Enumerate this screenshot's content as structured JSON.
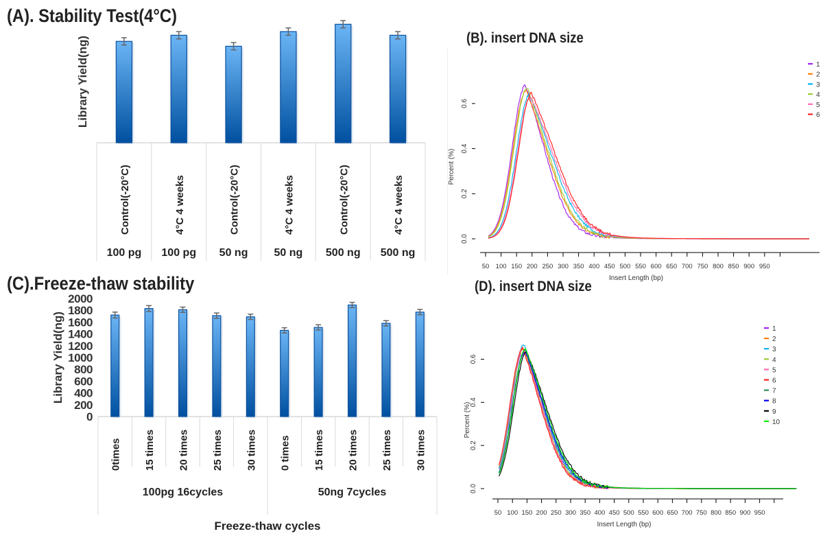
{
  "chart_data": [
    {
      "id": "A",
      "type": "bar",
      "title": "(A). Stability Test(4°C)",
      "xlabel": "",
      "ylabel": "Library Yield(ng)",
      "y_ticks_shown": false,
      "ylim": [
        0,
        100
      ],
      "value_units": "relative (no y tick labels shown)",
      "categories": [
        "Control(-20°C)",
        "4°C 4 weeks",
        "Control(-20°C)",
        "4°C 4 weeks",
        "Control(-20°C)",
        "4°C 4 weeks"
      ],
      "groups": [
        "100 pg",
        "100 pg",
        "50 ng",
        "50 ng",
        "500 ng",
        "500 ng"
      ],
      "values": [
        83,
        88,
        79,
        91,
        97,
        88
      ],
      "errors": [
        3,
        3,
        3,
        3,
        3,
        3
      ],
      "bar_color_top": "#6bb5f5",
      "bar_color_bottom": "#0050a0"
    },
    {
      "id": "B",
      "type": "line",
      "title": "(B). insert DNA size",
      "xlabel": "Insert Length (bp)",
      "ylabel": "Percent (%)",
      "xlim": [
        50,
        1000
      ],
      "ylim": [
        0,
        0.7
      ],
      "x_ticks": [
        50,
        100,
        150,
        200,
        250,
        300,
        350,
        400,
        450,
        500,
        550,
        600,
        650,
        700,
        750,
        800,
        850,
        900,
        950
      ],
      "y_ticks": [
        "0.0",
        "0.2",
        "0.4",
        "0.6"
      ],
      "legend_position": "top-right",
      "series": [
        {
          "name": "1",
          "color": "#a020f0",
          "peak_x": 160,
          "peak_y": 0.68,
          "right_decay": 70
        },
        {
          "name": "2",
          "color": "#ff7f00",
          "peak_x": 162,
          "peak_y": 0.66,
          "right_decay": 76
        },
        {
          "name": "3",
          "color": "#00b2ee",
          "peak_x": 172,
          "peak_y": 0.64,
          "right_decay": 80
        },
        {
          "name": "4",
          "color": "#9acd32",
          "peak_x": 165,
          "peak_y": 0.67,
          "right_decay": 76
        },
        {
          "name": "5",
          "color": "#ff69b4",
          "peak_x": 175,
          "peak_y": 0.63,
          "right_decay": 84
        },
        {
          "name": "6",
          "color": "#ff2020",
          "peak_x": 178,
          "peak_y": 0.645,
          "right_decay": 86
        }
      ]
    },
    {
      "id": "C",
      "type": "bar",
      "title": "(C).Freeze-thaw stability",
      "xlabel": "Freeze-thaw cycles",
      "ylabel": "Library Yield(ng)",
      "ylim": [
        0,
        2000
      ],
      "y_ticks": [
        0,
        200,
        400,
        600,
        800,
        1000,
        1200,
        1400,
        1600,
        1800,
        2000
      ],
      "categories": [
        "0times",
        "15 times",
        "20 times",
        "25 times",
        "30 times",
        "0 times",
        "15 times",
        "20 times",
        "25 times",
        "30 times"
      ],
      "groups": [
        {
          "label": "100pg 16cycles",
          "span": 5
        },
        {
          "label": "50ng 7cycles",
          "span": 5
        }
      ],
      "values": [
        1720,
        1830,
        1810,
        1710,
        1690,
        1460,
        1510,
        1890,
        1580,
        1770
      ],
      "errors": [
        50,
        50,
        45,
        45,
        45,
        45,
        45,
        45,
        45,
        45
      ],
      "bar_color_top": "#6bb5f5",
      "bar_color_bottom": "#0050a0"
    },
    {
      "id": "D",
      "type": "line",
      "title": "(D). insert DNA size",
      "xlabel": "Insert Length (bp)",
      "ylabel": "Percent (%)",
      "xlim": [
        50,
        1000
      ],
      "ylim": [
        0,
        0.7
      ],
      "x_ticks": [
        50,
        100,
        150,
        200,
        250,
        300,
        350,
        400,
        450,
        500,
        550,
        600,
        650,
        700,
        750,
        800,
        850,
        900,
        950
      ],
      "y_ticks": [
        "0.0",
        "0.2",
        "0.4",
        "0.6"
      ],
      "legend_position": "top-right",
      "series": [
        {
          "name": "1",
          "color": "#a020f0",
          "peak_x": 160,
          "peak_y": 0.65,
          "right_decay": 72
        },
        {
          "name": "2",
          "color": "#ff7f00",
          "peak_x": 158,
          "peak_y": 0.65,
          "right_decay": 70
        },
        {
          "name": "3",
          "color": "#00b2ee",
          "peak_x": 160,
          "peak_y": 0.67,
          "right_decay": 72
        },
        {
          "name": "4",
          "color": "#9acd32",
          "peak_x": 158,
          "peak_y": 0.65,
          "right_decay": 71
        },
        {
          "name": "5",
          "color": "#ff69b4",
          "peak_x": 157,
          "peak_y": 0.65,
          "right_decay": 70
        },
        {
          "name": "6",
          "color": "#ff2020",
          "peak_x": 156,
          "peak_y": 0.65,
          "right_decay": 69
        },
        {
          "name": "7",
          "color": "#2e8b57",
          "peak_x": 163,
          "peak_y": 0.64,
          "right_decay": 74
        },
        {
          "name": "8",
          "color": "#0000ee",
          "peak_x": 164,
          "peak_y": 0.635,
          "right_decay": 74
        },
        {
          "name": "9",
          "color": "#000000",
          "peak_x": 168,
          "peak_y": 0.635,
          "right_decay": 77
        },
        {
          "name": "10",
          "color": "#00ee00",
          "peak_x": 165,
          "peak_y": 0.645,
          "right_decay": 75
        }
      ]
    }
  ]
}
